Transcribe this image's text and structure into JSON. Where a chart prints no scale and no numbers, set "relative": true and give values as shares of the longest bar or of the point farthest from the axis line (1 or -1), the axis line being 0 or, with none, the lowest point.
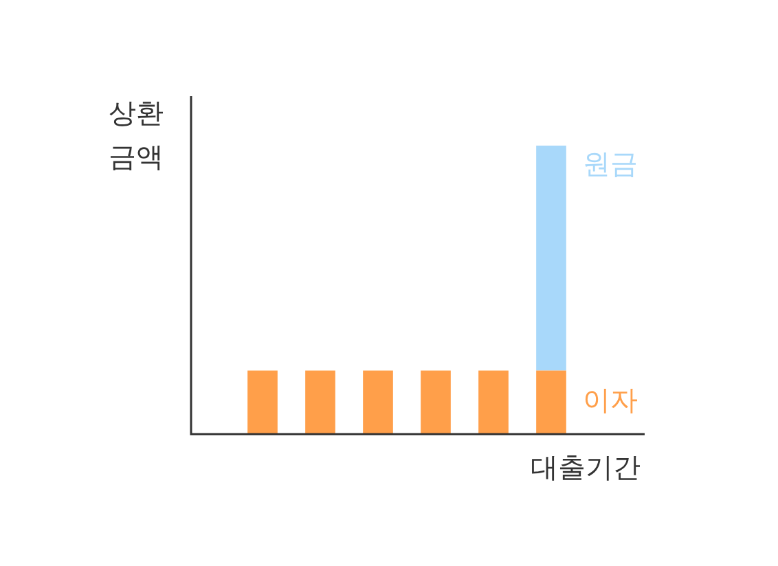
{
  "chart_data": {
    "type": "bar",
    "relative": true,
    "stacked": true,
    "xlabel": "대출기간",
    "ylabel": "상환 금액",
    "legend": false,
    "categories": [
      null,
      null,
      null,
      null,
      null,
      null
    ],
    "series": [
      {
        "name": "이자",
        "color": "#ff9f4a",
        "values": [
          0.22,
          0.22,
          0.22,
          0.22,
          0.22,
          0.22
        ]
      },
      {
        "name": "원금",
        "color": "#a8d8fa",
        "values": [
          null,
          null,
          null,
          null,
          null,
          0.78
        ]
      }
    ]
  }
}
